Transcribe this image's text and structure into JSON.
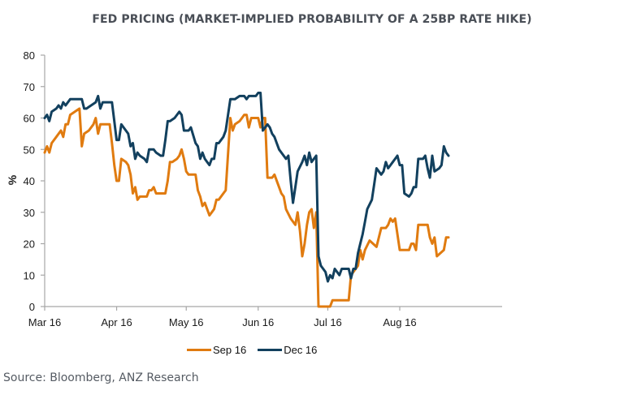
{
  "chart_data": {
    "type": "line",
    "title": "FED PRICING (MARKET-IMPLIED PROBABILITY OF A 25BP RATE HIKE)",
    "xlabel": "",
    "ylabel": "%",
    "ylim": [
      0,
      80
    ],
    "yticks": [
      0,
      10,
      20,
      30,
      40,
      50,
      60,
      70,
      80
    ],
    "x_unit": "days since Mar 1 2016",
    "xlim": [
      0,
      176
    ],
    "xticks": [
      {
        "day": 0,
        "label": "Mar 16"
      },
      {
        "day": 31,
        "label": "Apr 16"
      },
      {
        "day": 61,
        "label": "May 16"
      },
      {
        "day": 92,
        "label": "Jun 16"
      },
      {
        "day": 122,
        "label": "Jul 16"
      },
      {
        "day": 153,
        "label": "Aug 16"
      }
    ],
    "grid": false,
    "legend_position": "bottom-center",
    "series": [
      {
        "name": "Sep 16",
        "color": "#e07b10",
        "points": [
          [
            0,
            49
          ],
          [
            1,
            51
          ],
          [
            2,
            49
          ],
          [
            3,
            52
          ],
          [
            5,
            54
          ],
          [
            7,
            56
          ],
          [
            8,
            54
          ],
          [
            9,
            58
          ],
          [
            10,
            58
          ],
          [
            11,
            61
          ],
          [
            13,
            62
          ],
          [
            15,
            63
          ],
          [
            16,
            51
          ],
          [
            17,
            55
          ],
          [
            19,
            56
          ],
          [
            21,
            58
          ],
          [
            22,
            60
          ],
          [
            23,
            55
          ],
          [
            24,
            58
          ],
          [
            28,
            58
          ],
          [
            29,
            52
          ],
          [
            30,
            45
          ],
          [
            31,
            40
          ],
          [
            32,
            40
          ],
          [
            33,
            47
          ],
          [
            35,
            46
          ],
          [
            36,
            45
          ],
          [
            37,
            42
          ],
          [
            38,
            36
          ],
          [
            39,
            38
          ],
          [
            40,
            34
          ],
          [
            41,
            35
          ],
          [
            43,
            35
          ],
          [
            44,
            35
          ],
          [
            45,
            37
          ],
          [
            46,
            37
          ],
          [
            47,
            38
          ],
          [
            48,
            36
          ],
          [
            52,
            36
          ],
          [
            53,
            40
          ],
          [
            54,
            46
          ],
          [
            55,
            46
          ],
          [
            57,
            47
          ],
          [
            58,
            48
          ],
          [
            59,
            50
          ],
          [
            60,
            47
          ],
          [
            61,
            43
          ],
          [
            62,
            42
          ],
          [
            65,
            42
          ],
          [
            66,
            37
          ],
          [
            67,
            35
          ],
          [
            68,
            32
          ],
          [
            69,
            33
          ],
          [
            71,
            29
          ],
          [
            72,
            30
          ],
          [
            73,
            31
          ],
          [
            74,
            34
          ],
          [
            75,
            34
          ],
          [
            77,
            36
          ],
          [
            78,
            37
          ],
          [
            80,
            60
          ],
          [
            81,
            56
          ],
          [
            82,
            58
          ],
          [
            84,
            59
          ],
          [
            85,
            60
          ],
          [
            86,
            61
          ],
          [
            87,
            61
          ],
          [
            88,
            57
          ],
          [
            89,
            60
          ],
          [
            92,
            60
          ],
          [
            93,
            57
          ],
          [
            94,
            60
          ],
          [
            95,
            60
          ],
          [
            96,
            41
          ],
          [
            98,
            41
          ],
          [
            99,
            42
          ],
          [
            101,
            38
          ],
          [
            102,
            36
          ],
          [
            103,
            35
          ],
          [
            104,
            31
          ],
          [
            106,
            28
          ],
          [
            108,
            26
          ],
          [
            109,
            30
          ],
          [
            110,
            24
          ],
          [
            111,
            16
          ],
          [
            112,
            20
          ],
          [
            113,
            26
          ],
          [
            114,
            30
          ],
          [
            115,
            31
          ],
          [
            116,
            25
          ],
          [
            117,
            30
          ],
          [
            118,
            0
          ],
          [
            123,
            0
          ],
          [
            124,
            2
          ],
          [
            131,
            2
          ],
          [
            132,
            10
          ],
          [
            133,
            11
          ],
          [
            135,
            13
          ],
          [
            136,
            18
          ],
          [
            137,
            15
          ],
          [
            138,
            18
          ],
          [
            140,
            21
          ],
          [
            143,
            19
          ],
          [
            144,
            22
          ],
          [
            145,
            25
          ],
          [
            147,
            25
          ],
          [
            148,
            26
          ],
          [
            149,
            28
          ],
          [
            150,
            27
          ],
          [
            151,
            28
          ],
          [
            153,
            18
          ],
          [
            157,
            18
          ],
          [
            158,
            20
          ],
          [
            159,
            20
          ],
          [
            160,
            18
          ],
          [
            161,
            26
          ],
          [
            165,
            26
          ],
          [
            166,
            22
          ],
          [
            167,
            20
          ],
          [
            168,
            22
          ],
          [
            169,
            16
          ],
          [
            172,
            18
          ],
          [
            173,
            22
          ],
          [
            174,
            22
          ]
        ]
      },
      {
        "name": "Dec 16",
        "color": "#12405e",
        "points": [
          [
            0,
            60
          ],
          [
            1,
            61
          ],
          [
            2,
            59
          ],
          [
            3,
            62
          ],
          [
            5,
            63
          ],
          [
            6,
            64
          ],
          [
            7,
            63
          ],
          [
            8,
            65
          ],
          [
            9,
            64
          ],
          [
            11,
            66
          ],
          [
            16,
            66
          ],
          [
            17,
            63
          ],
          [
            18,
            63
          ],
          [
            20,
            64
          ],
          [
            22,
            65
          ],
          [
            23,
            67
          ],
          [
            24,
            63
          ],
          [
            25,
            65
          ],
          [
            29,
            65
          ],
          [
            30,
            59
          ],
          [
            31,
            53
          ],
          [
            32,
            53
          ],
          [
            33,
            58
          ],
          [
            34,
            57
          ],
          [
            36,
            55
          ],
          [
            37,
            51
          ],
          [
            38,
            52
          ],
          [
            39,
            47
          ],
          [
            40,
            49
          ],
          [
            41,
            48
          ],
          [
            43,
            47
          ],
          [
            44,
            46
          ],
          [
            45,
            50
          ],
          [
            47,
            50
          ],
          [
            48,
            49
          ],
          [
            50,
            48
          ],
          [
            51,
            48
          ],
          [
            52,
            53
          ],
          [
            53,
            59
          ],
          [
            54,
            59
          ],
          [
            56,
            60
          ],
          [
            57,
            61
          ],
          [
            58,
            62
          ],
          [
            59,
            61
          ],
          [
            60,
            56
          ],
          [
            62,
            56
          ],
          [
            63,
            57
          ],
          [
            65,
            52
          ],
          [
            66,
            51
          ],
          [
            67,
            47
          ],
          [
            68,
            49
          ],
          [
            69,
            47
          ],
          [
            71,
            45
          ],
          [
            72,
            47
          ],
          [
            73,
            47
          ],
          [
            74,
            52
          ],
          [
            75,
            52
          ],
          [
            77,
            54
          ],
          [
            78,
            56
          ],
          [
            80,
            66
          ],
          [
            82,
            66
          ],
          [
            84,
            67
          ],
          [
            86,
            67
          ],
          [
            87,
            66
          ],
          [
            88,
            67
          ],
          [
            91,
            67
          ],
          [
            92,
            68
          ],
          [
            93,
            68
          ],
          [
            94,
            56
          ],
          [
            96,
            58
          ],
          [
            97,
            57
          ],
          [
            98,
            55
          ],
          [
            99,
            54
          ],
          [
            100,
            52
          ],
          [
            101,
            50
          ],
          [
            102,
            49
          ],
          [
            104,
            47
          ],
          [
            105,
            48
          ],
          [
            106,
            40
          ],
          [
            107,
            33
          ],
          [
            108,
            38
          ],
          [
            109,
            43
          ],
          [
            111,
            46
          ],
          [
            112,
            48
          ],
          [
            113,
            45
          ],
          [
            114,
            49
          ],
          [
            115,
            46
          ],
          [
            116,
            47
          ],
          [
            117,
            48
          ],
          [
            118,
            16
          ],
          [
            119,
            13
          ],
          [
            121,
            11
          ],
          [
            122,
            8
          ],
          [
            123,
            10
          ],
          [
            124,
            9
          ],
          [
            125,
            12
          ],
          [
            126,
            11
          ],
          [
            127,
            10
          ],
          [
            128,
            12
          ],
          [
            129,
            12
          ],
          [
            131,
            12
          ],
          [
            132,
            9
          ],
          [
            133,
            12
          ],
          [
            134,
            12
          ],
          [
            135,
            17
          ],
          [
            136,
            20
          ],
          [
            137,
            23
          ],
          [
            138,
            27
          ],
          [
            139,
            31
          ],
          [
            141,
            34
          ],
          [
            142,
            39
          ],
          [
            143,
            44
          ],
          [
            145,
            42
          ],
          [
            146,
            43
          ],
          [
            147,
            46
          ],
          [
            148,
            44
          ],
          [
            149,
            45
          ],
          [
            150,
            46
          ],
          [
            151,
            47
          ],
          [
            152,
            48
          ],
          [
            153,
            45
          ],
          [
            154,
            45
          ],
          [
            155,
            36
          ],
          [
            157,
            35
          ],
          [
            158,
            36
          ],
          [
            159,
            38
          ],
          [
            160,
            38
          ],
          [
            161,
            47
          ],
          [
            163,
            47
          ],
          [
            164,
            48
          ],
          [
            165,
            44
          ],
          [
            166,
            41
          ],
          [
            167,
            48
          ],
          [
            168,
            43
          ],
          [
            170,
            44
          ],
          [
            171,
            45
          ],
          [
            172,
            51
          ],
          [
            173,
            49
          ],
          [
            174,
            48
          ]
        ]
      }
    ]
  },
  "source": "Source: Bloomberg, ANZ Research"
}
